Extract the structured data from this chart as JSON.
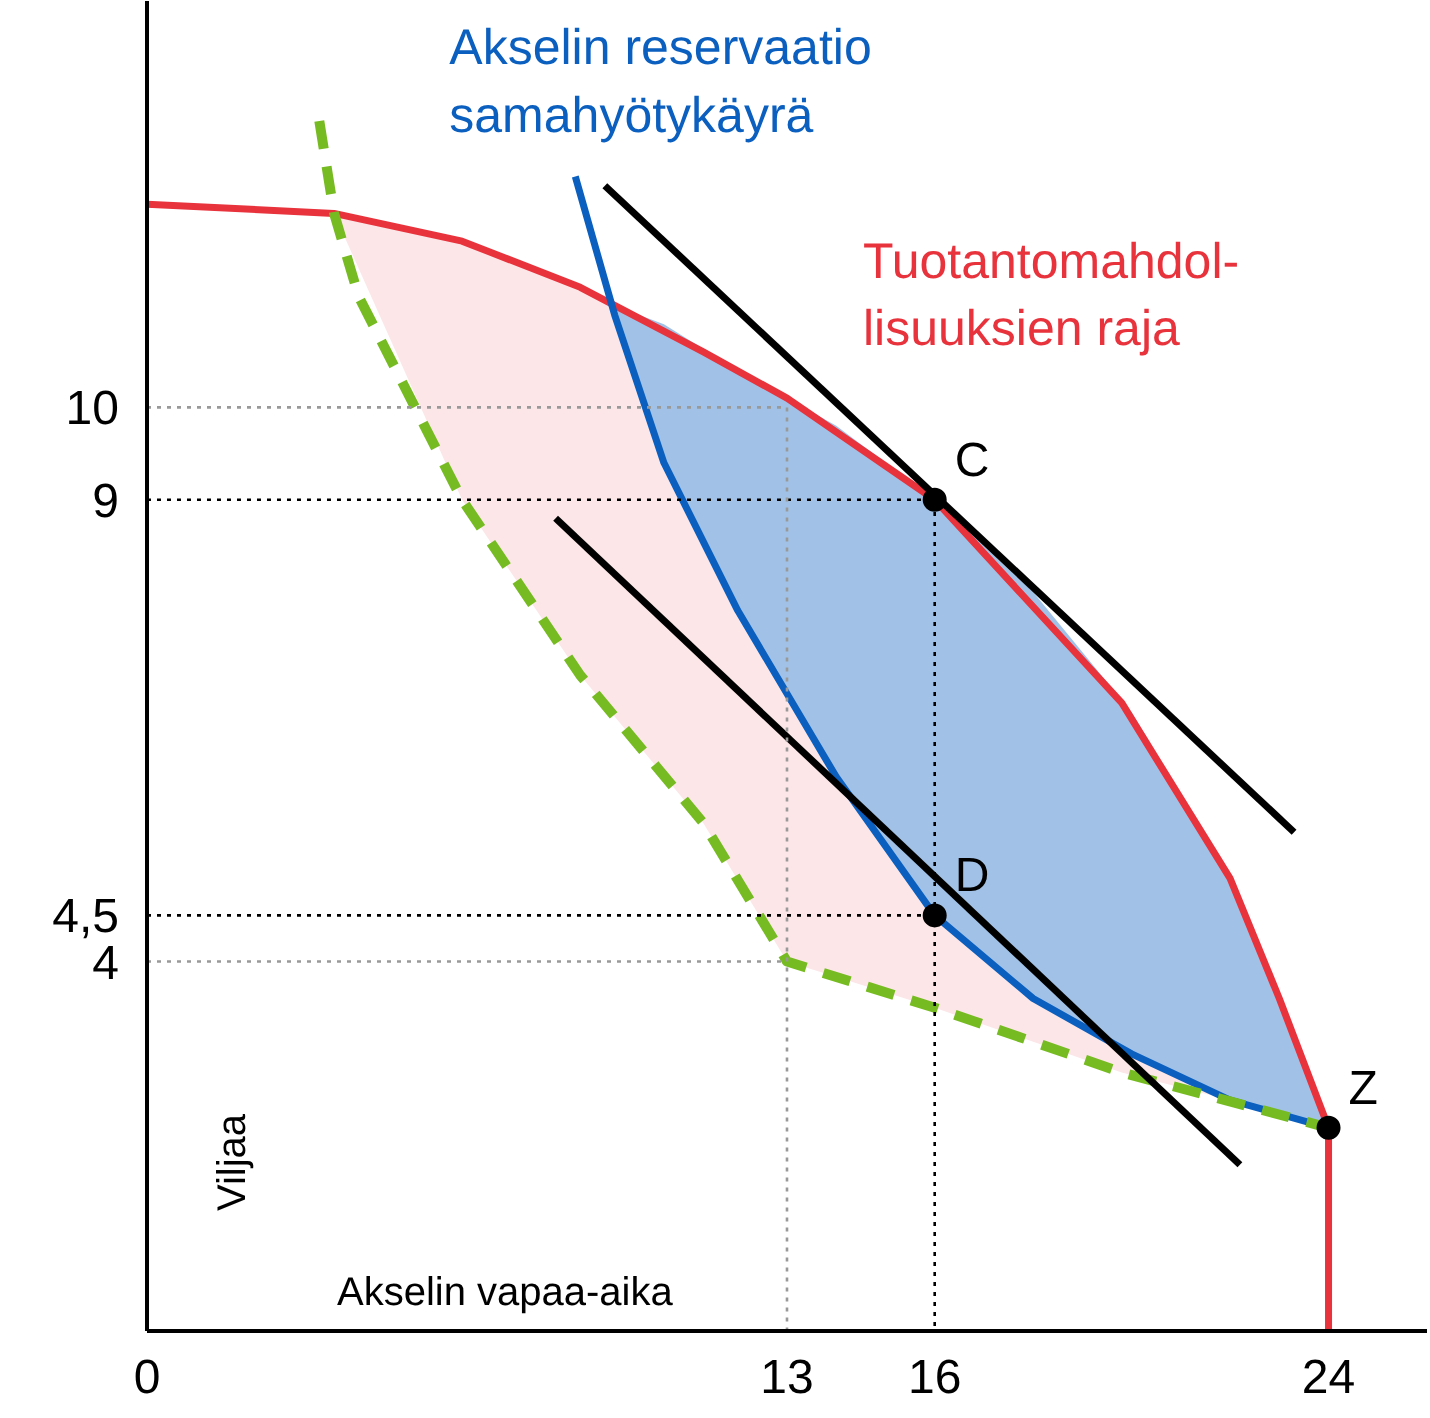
{
  "chart_data": {
    "type": "line",
    "xlabel": "Akselin vapaa-aika",
    "ylabel": "Viljaa",
    "xlim": [
      0,
      26
    ],
    "ylim": [
      0,
      14.4
    ],
    "xticks": [
      0,
      13,
      16,
      24
    ],
    "yticks": [
      4,
      {
        "value": 4.5,
        "label": "4,5"
      },
      9,
      10
    ],
    "series": [
      {
        "name": "Tuotantomahdol-\nlisuuksien raja",
        "color": "#e8323c",
        "x": [
          0,
          3.8,
          6.4,
          8.8,
          11.3,
          13,
          16,
          19.8,
          22,
          23,
          24,
          24
        ],
        "values": [
          12.2,
          12.1,
          11.8,
          11.3,
          10.6,
          10.1,
          9,
          6.8,
          4.9,
          3.6,
          2.2,
          0
        ],
        "lower": [
          null,
          12.1,
          9,
          7.1,
          5.5,
          4,
          3.5,
          2.8,
          2.5,
          2.35,
          2.2,
          null
        ],
        "upper": [
          null,
          12.1,
          11.8,
          11.3,
          10.6,
          10.1,
          9,
          6.8,
          4.9,
          3.6,
          2.2,
          null
        ]
      },
      {
        "name": "Akselin reservaatio\nsamahyötykäyrä",
        "color": "#0a5fbf",
        "x": [
          8.7,
          9.5,
          10.5,
          12,
          14,
          16,
          18,
          20,
          22,
          24
        ],
        "values": [
          12.5,
          11,
          9.4,
          7.8,
          6,
          4.5,
          3.6,
          3,
          2.5,
          2.2
        ],
        "lower": [
          null,
          11,
          9.4,
          7.8,
          6,
          4.5,
          3.6,
          3,
          2.5,
          2.2
        ],
        "upper": [
          null,
          11.1,
          10.9,
          10.4,
          9.8,
          9,
          8,
          6.7,
          4.9,
          2.2
        ]
      },
      {
        "color": "#77bb22",
        "line_style": "dashed",
        "x": [
          3.5,
          3.8,
          4.3,
          6.4,
          8.8,
          11.3,
          13,
          16,
          19.8,
          24
        ],
        "values": [
          13.1,
          12.1,
          11.2,
          9,
          7.1,
          5.5,
          4,
          3.5,
          2.8,
          2.2
        ]
      },
      {
        "color": "#000000",
        "x": [
          9.3,
          23.3
        ],
        "values": [
          12.4,
          5.4
        ]
      },
      {
        "color": "#000000",
        "x": [
          8.3,
          22.2
        ],
        "values": [
          8.8,
          1.8
        ]
      },
      {
        "color": "#000000",
        "line_style": "dotted",
        "x": [
          0,
          16,
          16
        ],
        "values": [
          9,
          9,
          0
        ]
      },
      {
        "color": "#000000",
        "line_style": "dotted",
        "x": [
          0,
          16
        ],
        "values": [
          4.5,
          4.5
        ]
      },
      {
        "color": "#999999",
        "line_style": "dotted",
        "x": [
          0,
          13,
          13
        ],
        "values": [
          10,
          10,
          0
        ]
      },
      {
        "color": "#999999",
        "line_style": "dotted",
        "x": [
          0,
          13
        ],
        "values": [
          4,
          4
        ]
      },
      {
        "type": "scatter",
        "marker": "circle",
        "color": "#000000",
        "x": [
          16,
          16,
          24
        ],
        "values": [
          9,
          4.5,
          2.2
        ],
        "value_labels": [
          "C",
          "D",
          "Z"
        ]
      }
    ]
  }
}
